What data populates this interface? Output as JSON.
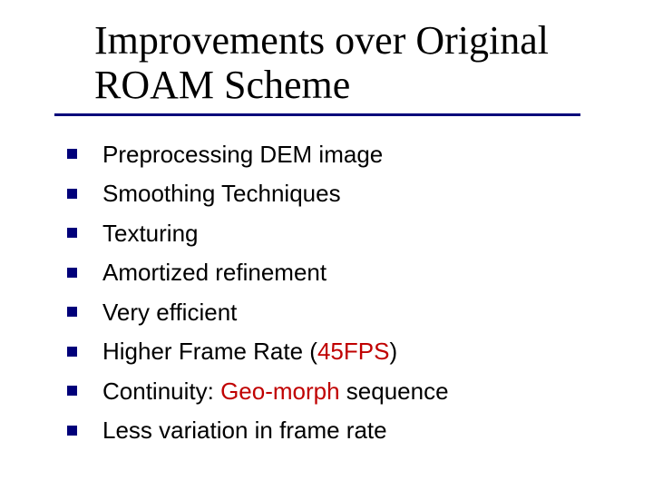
{
  "title": "Improvements over Original ROAM Scheme",
  "title_fontsize": 44,
  "title_fontfamily": "Times New Roman",
  "underline_color": "#00007a",
  "underline_width": 580,
  "bullet_color": "#00007a",
  "bullet_size": 11,
  "body_fontsize": 26,
  "body_fontfamily": "Verdana",
  "highlight_color": "#c00000",
  "bullets": [
    {
      "segments": [
        {
          "text": "Preprocessing DEM image",
          "highlight": false
        }
      ]
    },
    {
      "segments": [
        {
          "text": "Smoothing Techniques",
          "highlight": false
        }
      ]
    },
    {
      "segments": [
        {
          "text": "Texturing",
          "highlight": false
        }
      ]
    },
    {
      "segments": [
        {
          "text": "Amortized refinement",
          "highlight": false
        }
      ]
    },
    {
      "segments": [
        {
          "text": "Very efficient",
          "highlight": false
        }
      ]
    },
    {
      "segments": [
        {
          "text": "Higher Frame Rate (",
          "highlight": false
        },
        {
          "text": "45FPS",
          "highlight": true
        },
        {
          "text": ")",
          "highlight": false
        }
      ]
    },
    {
      "segments": [
        {
          "text": "Continuity: ",
          "highlight": false
        },
        {
          "text": "Geo-morph",
          "highlight": true
        },
        {
          "text": " sequence",
          "highlight": false
        }
      ]
    },
    {
      "segments": [
        {
          "text": "Less variation in frame rate",
          "highlight": false
        }
      ]
    }
  ]
}
